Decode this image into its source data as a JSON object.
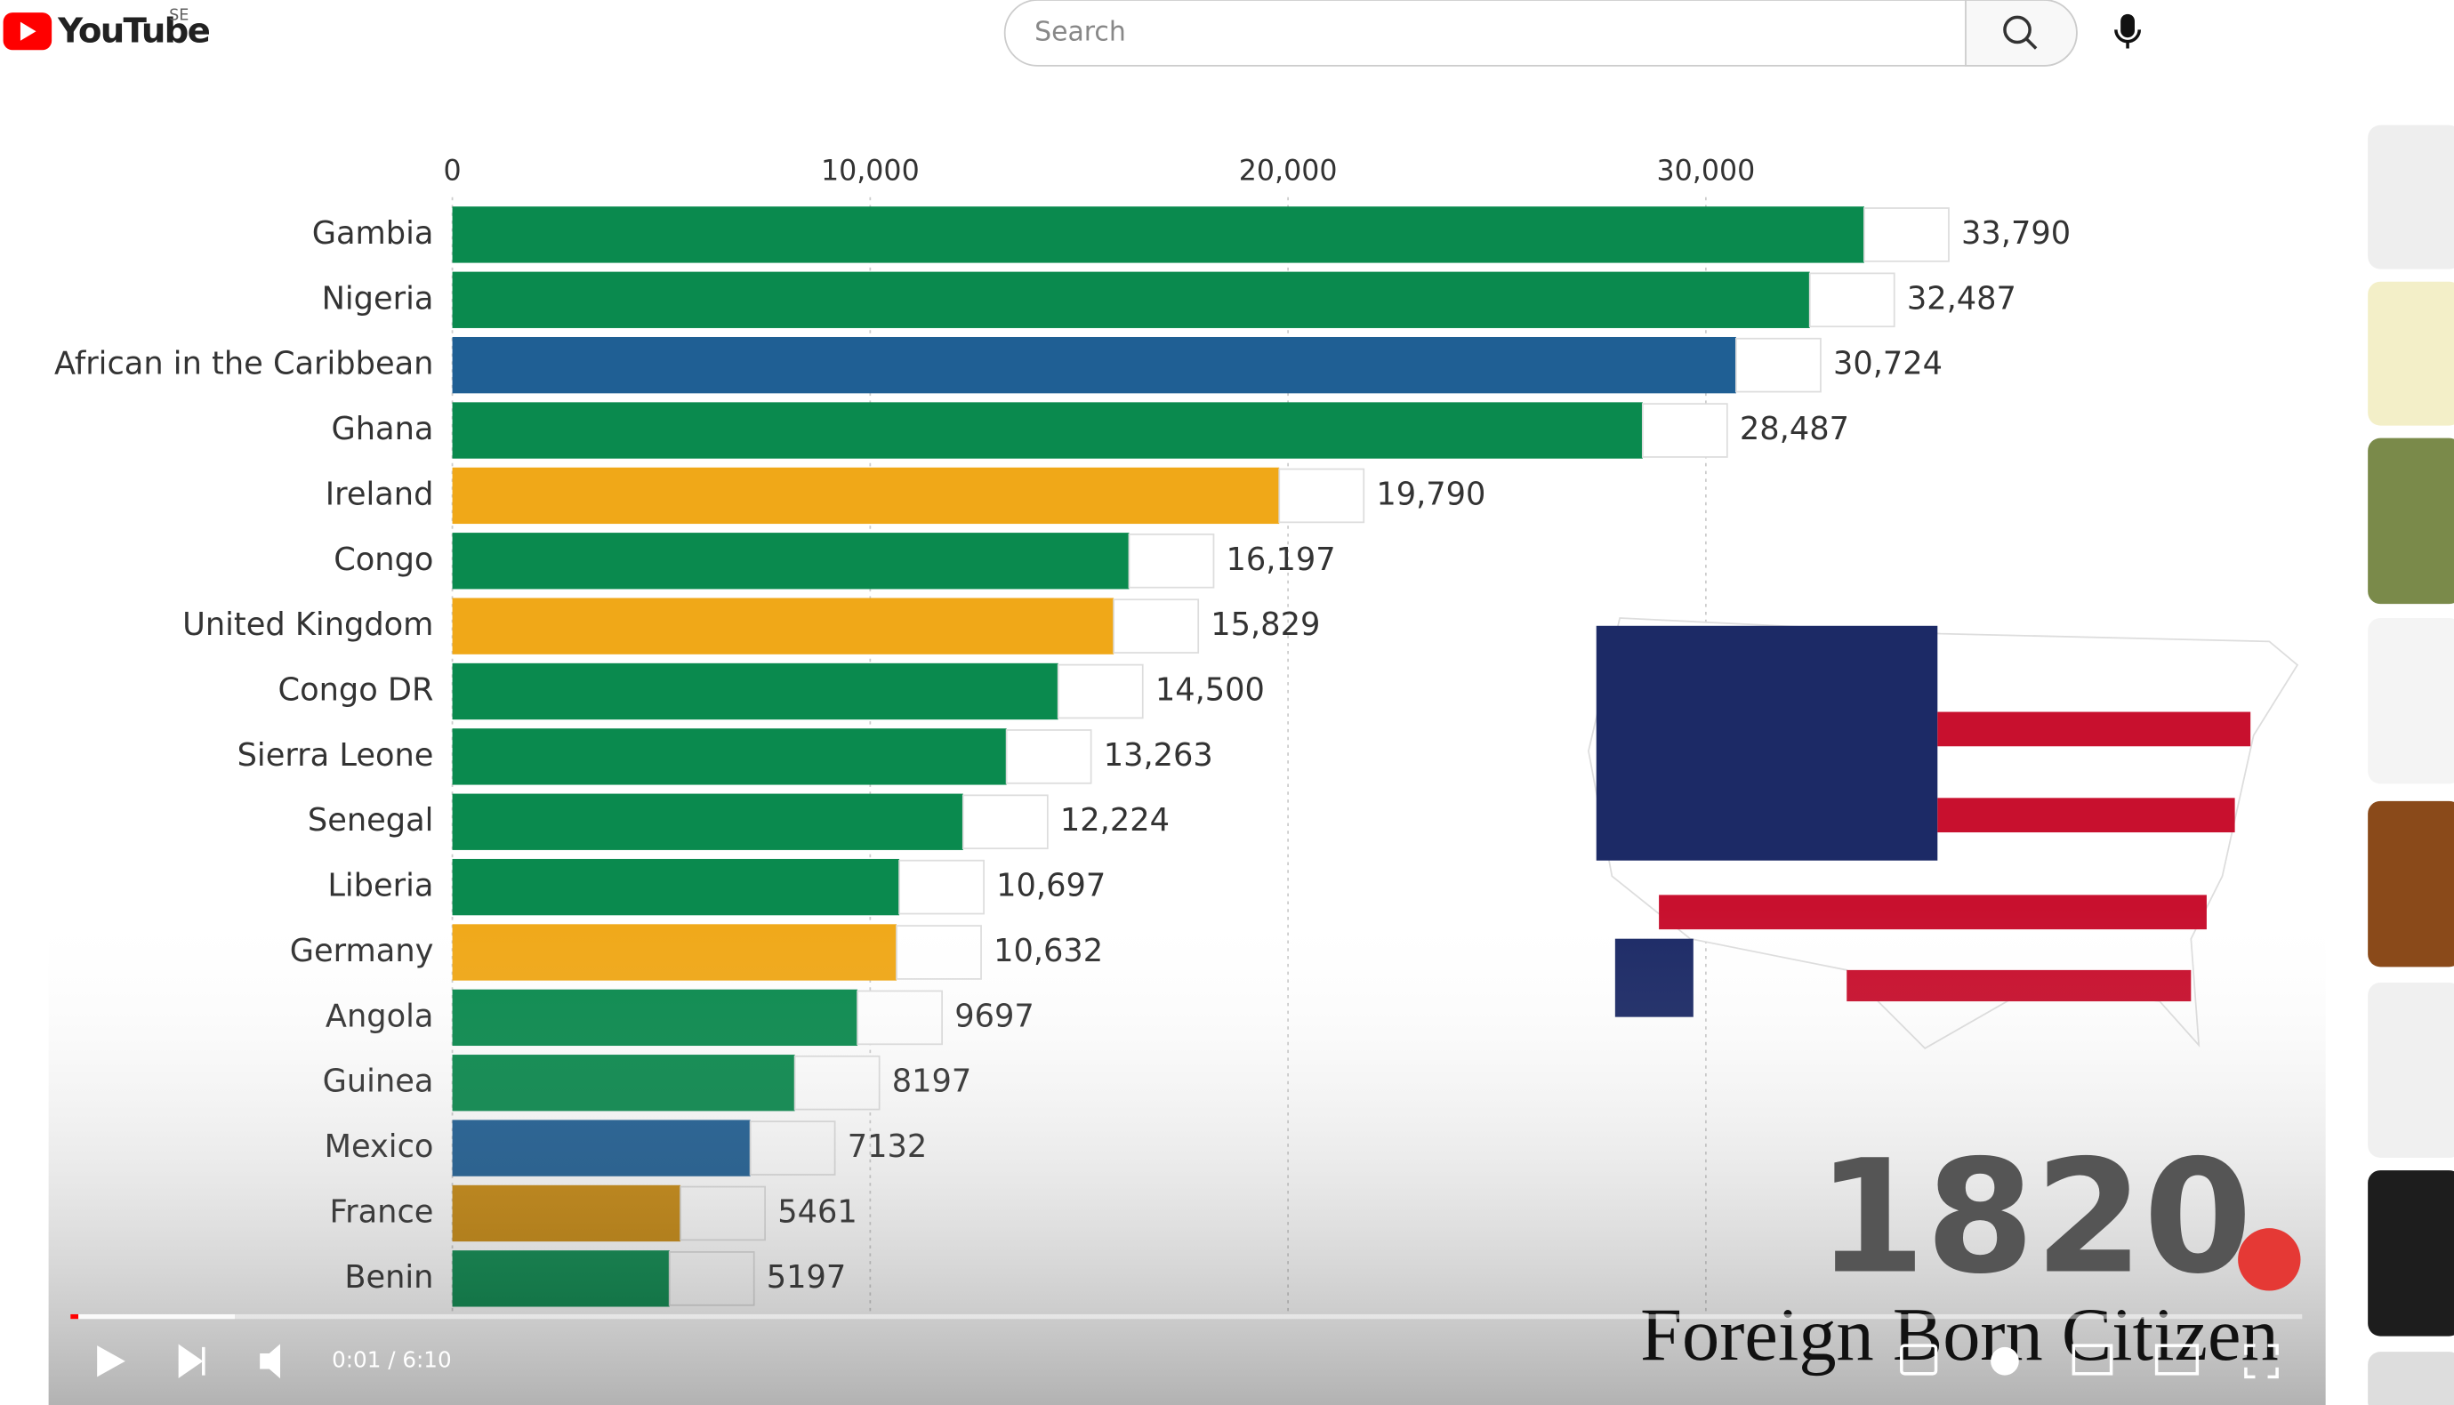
{
  "header": {
    "logo": "YouTube",
    "region": "SE",
    "search_placeholder": "Search"
  },
  "player": {
    "time": "0:01 / 6:10"
  },
  "chart_data": {
    "type": "bar",
    "orientation": "horizontal",
    "categories": [
      "Gambia",
      "Nigeria",
      "African in the Caribbean",
      "Ghana",
      "Ireland",
      "Congo",
      "United Kingdom",
      "Congo DR",
      "Sierra Leone",
      "Senegal",
      "Liberia",
      "Germany",
      "Angola",
      "Guinea",
      "Mexico",
      "France",
      "Benin"
    ],
    "values": [
      33790,
      32487,
      30724,
      28487,
      19790,
      16197,
      15829,
      14500,
      13263,
      12224,
      10697,
      10632,
      9697,
      8197,
      7132,
      5461,
      5197
    ],
    "value_labels": [
      "33,790",
      "32,487",
      "30,724",
      "28,487",
      "19,790",
      "16,197",
      "15,829",
      "14,500",
      "13,263",
      "12,224",
      "10,697",
      "10,632",
      "9697",
      "8197",
      "7132",
      "5461",
      "5197"
    ],
    "colors": [
      "#0a8a4e",
      "#0a8a4e",
      "#1f5f94",
      "#0a8a4e",
      "#f0a818",
      "#0a8a4e",
      "#f0a818",
      "#0a8a4e",
      "#0a8a4e",
      "#0a8a4e",
      "#0a8a4e",
      "#f0a818",
      "#0a8a4e",
      "#0a8a4e",
      "#1f5f94",
      "#c98a10",
      "#0a8a4e"
    ],
    "xlim": [
      0,
      30000
    ],
    "xticks": [
      0,
      {
        "value": 10000,
        "label": "10,000"
      },
      {
        "value": 20000,
        "label": "20,000"
      },
      {
        "value": 30000,
        "label": "30,000"
      }
    ],
    "grid": true,
    "year": "1820",
    "subtitle": "Foreign Born Citizen"
  }
}
